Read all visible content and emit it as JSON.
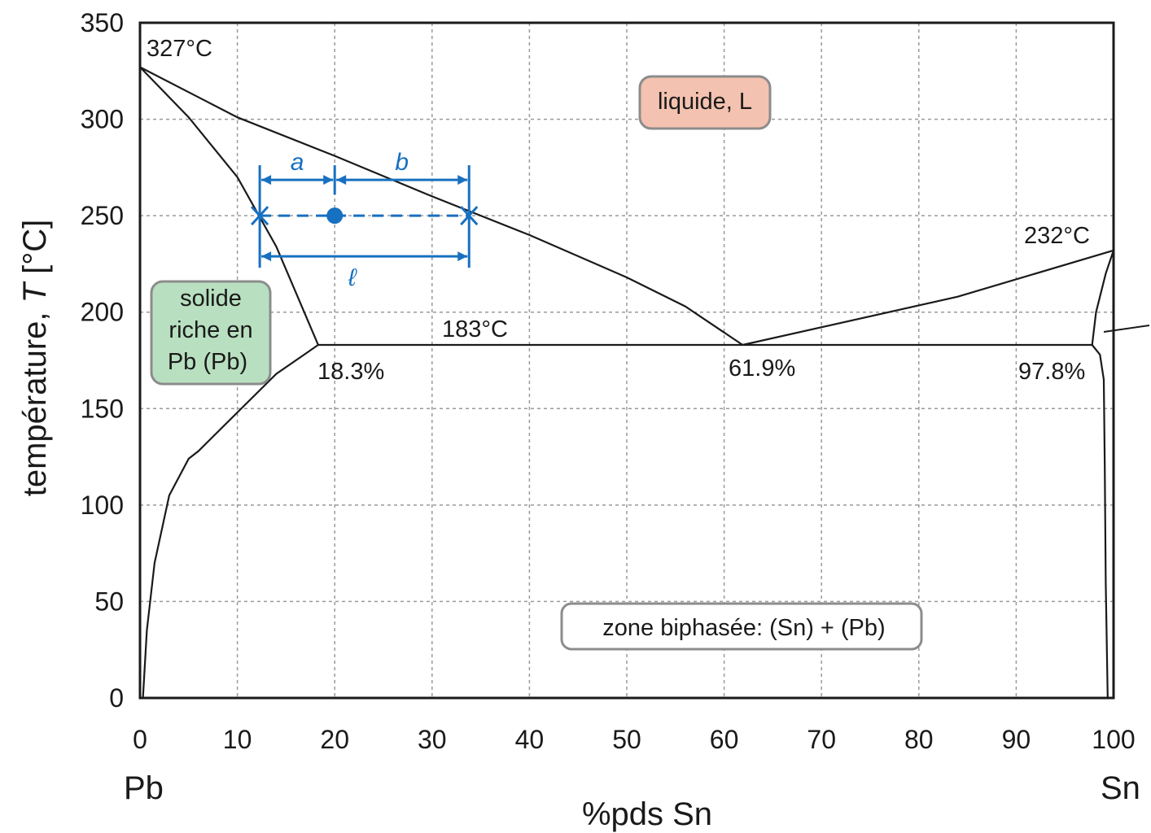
{
  "chart_data": {
    "type": "line",
    "title": "",
    "xlabel": "%pds Sn",
    "ylabel_main": "température, ",
    "ylabel_var": "T",
    "ylabel_unit": " [°C]",
    "xlim": [
      0,
      100
    ],
    "ylim": [
      0,
      350
    ],
    "x_ticks": [
      0,
      10,
      20,
      30,
      40,
      50,
      60,
      70,
      80,
      90,
      100
    ],
    "y_ticks": [
      0,
      50,
      100,
      150,
      200,
      250,
      300,
      350
    ],
    "grid": true,
    "x_end_labels": {
      "left": "Pb",
      "right": "Sn"
    },
    "series": [
      {
        "key": "liquidus_left",
        "points": [
          [
            0,
            327
          ],
          [
            10,
            301
          ],
          [
            20,
            281
          ],
          [
            30,
            260
          ],
          [
            40,
            240
          ],
          [
            50,
            218
          ],
          [
            56,
            203
          ],
          [
            61.9,
            183
          ]
        ]
      },
      {
        "key": "solidus_left",
        "points": [
          [
            0,
            327
          ],
          [
            5,
            301
          ],
          [
            10,
            270
          ],
          [
            14,
            234
          ],
          [
            18.3,
            183
          ]
        ]
      },
      {
        "key": "solvus_left",
        "points": [
          [
            18.3,
            183
          ],
          [
            14,
            168
          ],
          [
            10,
            148
          ],
          [
            6,
            128
          ],
          [
            5,
            124
          ],
          [
            3,
            105
          ],
          [
            1.5,
            70
          ],
          [
            0.7,
            35
          ],
          [
            0.3,
            0
          ]
        ]
      },
      {
        "key": "eutectic_line",
        "points": [
          [
            18.3,
            183
          ],
          [
            97.8,
            183
          ]
        ]
      },
      {
        "key": "liquidus_right",
        "points": [
          [
            61.9,
            183
          ],
          [
            84,
            208
          ],
          [
            100,
            232
          ]
        ]
      },
      {
        "key": "solidus_right",
        "points": [
          [
            97.8,
            183
          ],
          [
            98.2,
            200
          ],
          [
            99.2,
            220
          ],
          [
            100,
            232
          ]
        ]
      },
      {
        "key": "solvus_right",
        "points": [
          [
            97.8,
            183
          ],
          [
            98.6,
            178
          ],
          [
            99.0,
            165
          ],
          [
            99.1,
            120
          ],
          [
            99.2,
            60
          ],
          [
            99.4,
            0
          ]
        ]
      }
    ],
    "annotations": {
      "melt_pb": "327°C",
      "melt_sn": "232°C",
      "eutectic_temp": "183°C",
      "pct_left": "18.3%",
      "pct_eutectic": "61.9%",
      "pct_right": "97.8%"
    },
    "regions": {
      "liquid": "liquide, L",
      "solid_pb_lines": [
        "solide",
        "riche en",
        "Pb (Pb)"
      ],
      "two_phase": "zone biphasée: (Sn) + (Pb)"
    },
    "lever_rule": {
      "temperature": 250,
      "x_solid": 12.3,
      "x_alloy": 20,
      "x_liquid": 33.8,
      "label_a": "a",
      "label_b": "b",
      "label_l": "ℓ"
    },
    "colors": {
      "axes": "#1a1a1a",
      "grid": "#9a9a9a",
      "lever": "#1870c0",
      "liquid_fill": "#f4c2b0",
      "solid_fill": "#b8e0c0",
      "box_border": "#8c8c8c"
    }
  }
}
